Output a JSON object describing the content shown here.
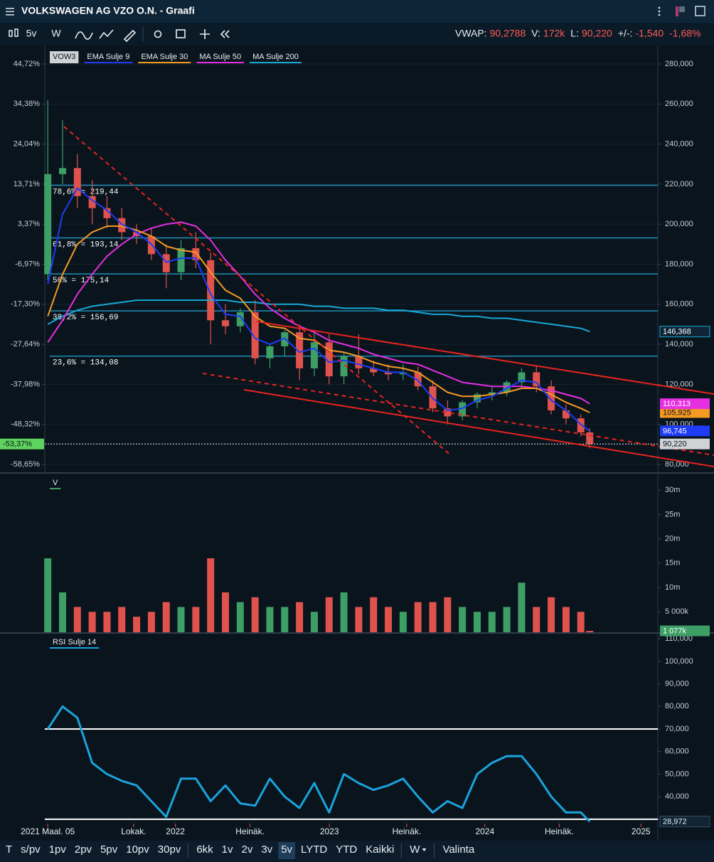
{
  "header": {
    "title": "VOLKSWAGEN AG VZO O.N. - Graafi"
  },
  "toolbar": {
    "items": [
      "5v",
      "W"
    ],
    "stats": [
      {
        "label": "VWAP:",
        "value": "90,2788"
      },
      {
        "label": "V:",
        "value": "172k"
      },
      {
        "label": "L:",
        "value": "90,220"
      },
      {
        "label": "+/-:",
        "value": "-1,540"
      },
      {
        "value": "-1,68%"
      }
    ]
  },
  "bottom_toolbar": [
    "T",
    "s/pv",
    "1pv",
    "2pv",
    "5pv",
    "10pv",
    "30pv",
    "6kk",
    "1v",
    "2v",
    "3v",
    "5v",
    "LYTD",
    "YTD",
    "Kaikki",
    "W",
    "Valinta"
  ],
  "chart_data": [
    {
      "type": "candlestick",
      "name": "VOW3",
      "up_color": "#3d9f66",
      "down_color": "#e0534d",
      "x": [
        0,
        5,
        10,
        15,
        20,
        25,
        30,
        35,
        40,
        45,
        50,
        55,
        60,
        65,
        70,
        75,
        80,
        85,
        90,
        95,
        100,
        105,
        110,
        115,
        120,
        125,
        130,
        135,
        140,
        145,
        150,
        155,
        160,
        165,
        170,
        175,
        180,
        183
      ],
      "open": [
        175,
        225,
        228,
        214,
        208,
        203,
        196,
        194,
        185,
        176,
        188,
        182,
        152,
        149,
        156,
        133,
        139,
        146,
        128,
        141,
        124,
        134,
        128,
        126,
        125,
        126,
        119,
        108,
        104,
        111,
        115,
        116,
        121,
        126,
        119,
        107,
        103,
        96
      ],
      "high": [
        262,
        252,
        235,
        222,
        214,
        208,
        200,
        198,
        190,
        192,
        196,
        186,
        160,
        158,
        162,
        140,
        147,
        150,
        146,
        145,
        136,
        145,
        132,
        130,
        130,
        129,
        122,
        112,
        112,
        116,
        119,
        122,
        128,
        129,
        122,
        110,
        105,
        98
      ],
      "low": [
        172,
        220,
        208,
        200,
        198,
        192,
        190,
        182,
        168,
        172,
        178,
        140,
        145,
        146,
        130,
        128,
        134,
        122,
        124,
        120,
        120,
        125,
        124,
        122,
        122,
        117,
        106,
        100,
        102,
        108,
        112,
        114,
        118,
        116,
        105,
        100,
        94,
        88
      ],
      "close": [
        225,
        228,
        214,
        208,
        203,
        196,
        194,
        185,
        176,
        188,
        182,
        152,
        149,
        156,
        133,
        139,
        146,
        128,
        141,
        124,
        134,
        128,
        126,
        125,
        126,
        119,
        108,
        104,
        111,
        115,
        116,
        121,
        126,
        119,
        107,
        103,
        96,
        90.22
      ],
      "series": [
        {
          "name": "EMA Sulje 9",
          "color": "#1f3cf5",
          "end_label": "96,745",
          "values": [
            170,
            205,
            218,
            212,
            207,
            200,
            196,
            190,
            181,
            183,
            183,
            165,
            155,
            154,
            143,
            140,
            143,
            136,
            138,
            131,
            132,
            130,
            128,
            126,
            126,
            122,
            113,
            107,
            108,
            112,
            114,
            118,
            122,
            121,
            112,
            107,
            100,
            96.745
          ]
        },
        {
          "name": "EMA Sulje 30",
          "color": "#f59a23",
          "end_label": "105,925",
          "values": [
            154,
            175,
            190,
            196,
            199,
            199,
            197,
            194,
            189,
            187,
            186,
            176,
            167,
            163,
            154,
            149,
            148,
            143,
            142,
            137,
            136,
            134,
            131,
            129,
            128,
            126,
            121,
            116,
            114,
            114,
            115,
            116,
            118,
            118,
            115,
            111,
            108,
            105.925
          ]
        },
        {
          "name": "MA Sulje 50",
          "color": "#e52fe0",
          "end_label": "110,313",
          "values": [
            141,
            152,
            165,
            175,
            184,
            190,
            195,
            198,
            200,
            201,
            199,
            192,
            182,
            174,
            165,
            158,
            153,
            149,
            146,
            142,
            140,
            138,
            135,
            133,
            131,
            130,
            127,
            124,
            121,
            120,
            119,
            119,
            119,
            118,
            117,
            115,
            113,
            110.313
          ]
        },
        {
          "name": "MA Sulje 200",
          "color": "#17a9d6",
          "end_label": "146,368",
          "values": [
            150,
            154,
            157,
            159,
            160,
            161,
            162,
            162,
            162,
            162,
            162,
            162,
            162,
            161,
            161,
            160,
            160,
            160,
            159,
            159,
            158,
            158,
            158,
            157,
            157,
            156,
            155,
            155,
            154,
            154,
            153,
            153,
            152,
            151,
            150,
            149,
            148,
            146.368
          ]
        }
      ],
      "levels": [
        {
          "value": 219.44,
          "label": "78,6% = 219,44"
        },
        {
          "value": 193.14,
          "label": "61,8% = 193,14"
        },
        {
          "value": 175.14,
          "label": "50% = 175,14"
        },
        {
          "value": 156.69,
          "label": "38,2% = 156,69"
        },
        {
          "value": 134.08,
          "label": "23,6% = 134,08"
        }
      ],
      "last_price": {
        "value": 90.22,
        "label": "90,220"
      },
      "last_change": {
        "value": -53.37,
        "label": "-53,37%"
      },
      "xlim": [
        -1,
        206
      ],
      "ylim": [
        76.8,
        287.8
      ],
      "yticks": [
        {
          "value": 80,
          "label": "80,000"
        },
        {
          "value": 100,
          "label": "100,000"
        },
        {
          "value": 120,
          "label": "120,000"
        },
        {
          "value": 140,
          "label": "140,000"
        },
        {
          "value": 160,
          "label": "160,000"
        },
        {
          "value": 180,
          "label": "180,000"
        },
        {
          "value": 200,
          "label": "200,000"
        },
        {
          "value": 220,
          "label": "220,000"
        },
        {
          "value": 240,
          "label": "240,000"
        },
        {
          "value": 260,
          "label": "260,000"
        },
        {
          "value": 280,
          "label": "280,000"
        }
      ],
      "y2lim": [
        -60.3,
        48.76
      ],
      "y2ticks": [
        {
          "value": 44.72,
          "label": "44,72%"
        },
        {
          "value": 34.38,
          "label": "34,38%"
        },
        {
          "value": 24.04,
          "label": "24,04%"
        },
        {
          "value": 13.71,
          "label": "13,71%"
        },
        {
          "value": 3.37,
          "label": "3,37%"
        },
        {
          "value": -6.97,
          "label": "-6,97%"
        },
        {
          "value": -17.3,
          "label": "-17,30%"
        },
        {
          "value": -27.64,
          "label": "-27,64%"
        },
        {
          "value": -37.98,
          "label": "-37,98%"
        },
        {
          "value": -48.32,
          "label": "-48,32%"
        },
        {
          "value": -58.65,
          "label": "-58,65%"
        }
      ],
      "grid": true
    },
    {
      "type": "bar",
      "name": "V",
      "x": [
        0,
        5,
        10,
        15,
        20,
        25,
        30,
        35,
        40,
        45,
        50,
        55,
        60,
        65,
        70,
        75,
        80,
        85,
        90,
        95,
        100,
        105,
        110,
        115,
        120,
        125,
        130,
        135,
        140,
        145,
        150,
        155,
        160,
        165,
        170,
        175,
        180,
        183
      ],
      "values": [
        16,
        9,
        6,
        5,
        5,
        6,
        4,
        5,
        7,
        6,
        6,
        16,
        9,
        7,
        8,
        6,
        6,
        7,
        5,
        8,
        9,
        6,
        8,
        6,
        5,
        7,
        7,
        8,
        6,
        5,
        5,
        6,
        11,
        6,
        8,
        6,
        5,
        1.077
      ],
      "end_label": "1 077k",
      "xlim": [
        -1,
        206
      ],
      "ylim": [
        0.8,
        33.1
      ],
      "yticks": [
        {
          "value": 5,
          "label": "5 000k"
        },
        {
          "value": 10,
          "label": "10m"
        },
        {
          "value": 15,
          "label": "15m"
        },
        {
          "value": 20,
          "label": "20m"
        },
        {
          "value": 25,
          "label": "25m"
        },
        {
          "value": 30,
          "label": "30m"
        }
      ]
    },
    {
      "type": "line",
      "name": "RSI Sulje 14",
      "color": "#1aa3dc",
      "x": [
        0,
        5,
        10,
        15,
        20,
        25,
        30,
        35,
        40,
        45,
        50,
        55,
        60,
        65,
        70,
        75,
        80,
        85,
        90,
        95,
        100,
        105,
        110,
        115,
        120,
        125,
        130,
        135,
        140,
        145,
        150,
        155,
        160,
        165,
        170,
        175,
        180,
        183
      ],
      "values": [
        70,
        80,
        75,
        55,
        50,
        47,
        45,
        38,
        31,
        48,
        48,
        38,
        45,
        37,
        36,
        48,
        40,
        35,
        46,
        33,
        50,
        46,
        43,
        45,
        48,
        40,
        33,
        38,
        35,
        50,
        55,
        58,
        58,
        50,
        40,
        33,
        33,
        28.972
      ],
      "end_label": "28,972",
      "bands": [
        70,
        30
      ],
      "xlim": [
        -1,
        206
      ],
      "ylim": [
        28.05,
        111.96
      ],
      "yticks": [
        {
          "value": 30,
          "label": "30,000"
        },
        {
          "value": 40,
          "label": "40,000"
        },
        {
          "value": 50,
          "label": "50,000"
        },
        {
          "value": 60,
          "label": "60,000"
        },
        {
          "value": 70,
          "label": "70,000"
        },
        {
          "value": 80,
          "label": "80,000"
        },
        {
          "value": 90,
          "label": "90,000"
        },
        {
          "value": 100,
          "label": "100,000"
        },
        {
          "value": 110,
          "label": "110,000"
        }
      ],
      "xticks": [
        {
          "value": 0,
          "label": "2021 Maal. 05"
        },
        {
          "value": 29,
          "label": "Lokak."
        },
        {
          "value": 43.1,
          "label": "2022"
        },
        {
          "value": 68.3,
          "label": "Heinäk."
        },
        {
          "value": 95.1,
          "label": "2023"
        },
        {
          "value": 121.2,
          "label": "Heinäk."
        },
        {
          "value": 147.6,
          "label": "2024"
        },
        {
          "value": 172.7,
          "label": "Heinäk."
        },
        {
          "value": 200.3,
          "label": "2025"
        }
      ]
    }
  ]
}
